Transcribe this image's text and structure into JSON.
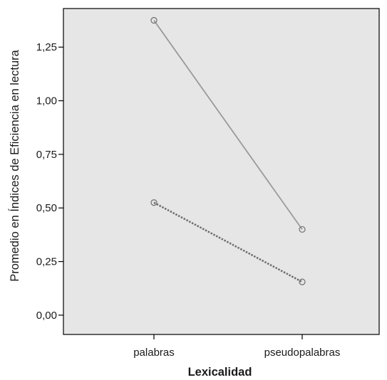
{
  "chart_data": {
    "type": "line",
    "xlabel": "Lexicalidad",
    "ylabel": "Promedio en Índices de Eficiencia en lectura",
    "categories": [
      "palabras",
      "pseudopalabras"
    ],
    "ylim": [
      -0.09,
      1.43
    ],
    "yticks": [
      0.0,
      0.25,
      0.5,
      0.75,
      1.0,
      1.25
    ],
    "ytick_labels": [
      "0,00",
      "0,25",
      "0,50",
      "0,75",
      "1,00",
      "1,25"
    ],
    "grid": false,
    "legend": "none",
    "colors": {
      "plot_background": "#e6e6e6",
      "frame": "#000000",
      "solid_series": "#9a9a9a",
      "dotted_series": "#6e6e6e",
      "text": "#1a1a1a"
    },
    "series": [
      {
        "values": [
          1.375,
          0.4
        ],
        "line_style": "solid"
      },
      {
        "values": [
          0.525,
          0.155
        ],
        "line_style": "dotted"
      }
    ]
  }
}
